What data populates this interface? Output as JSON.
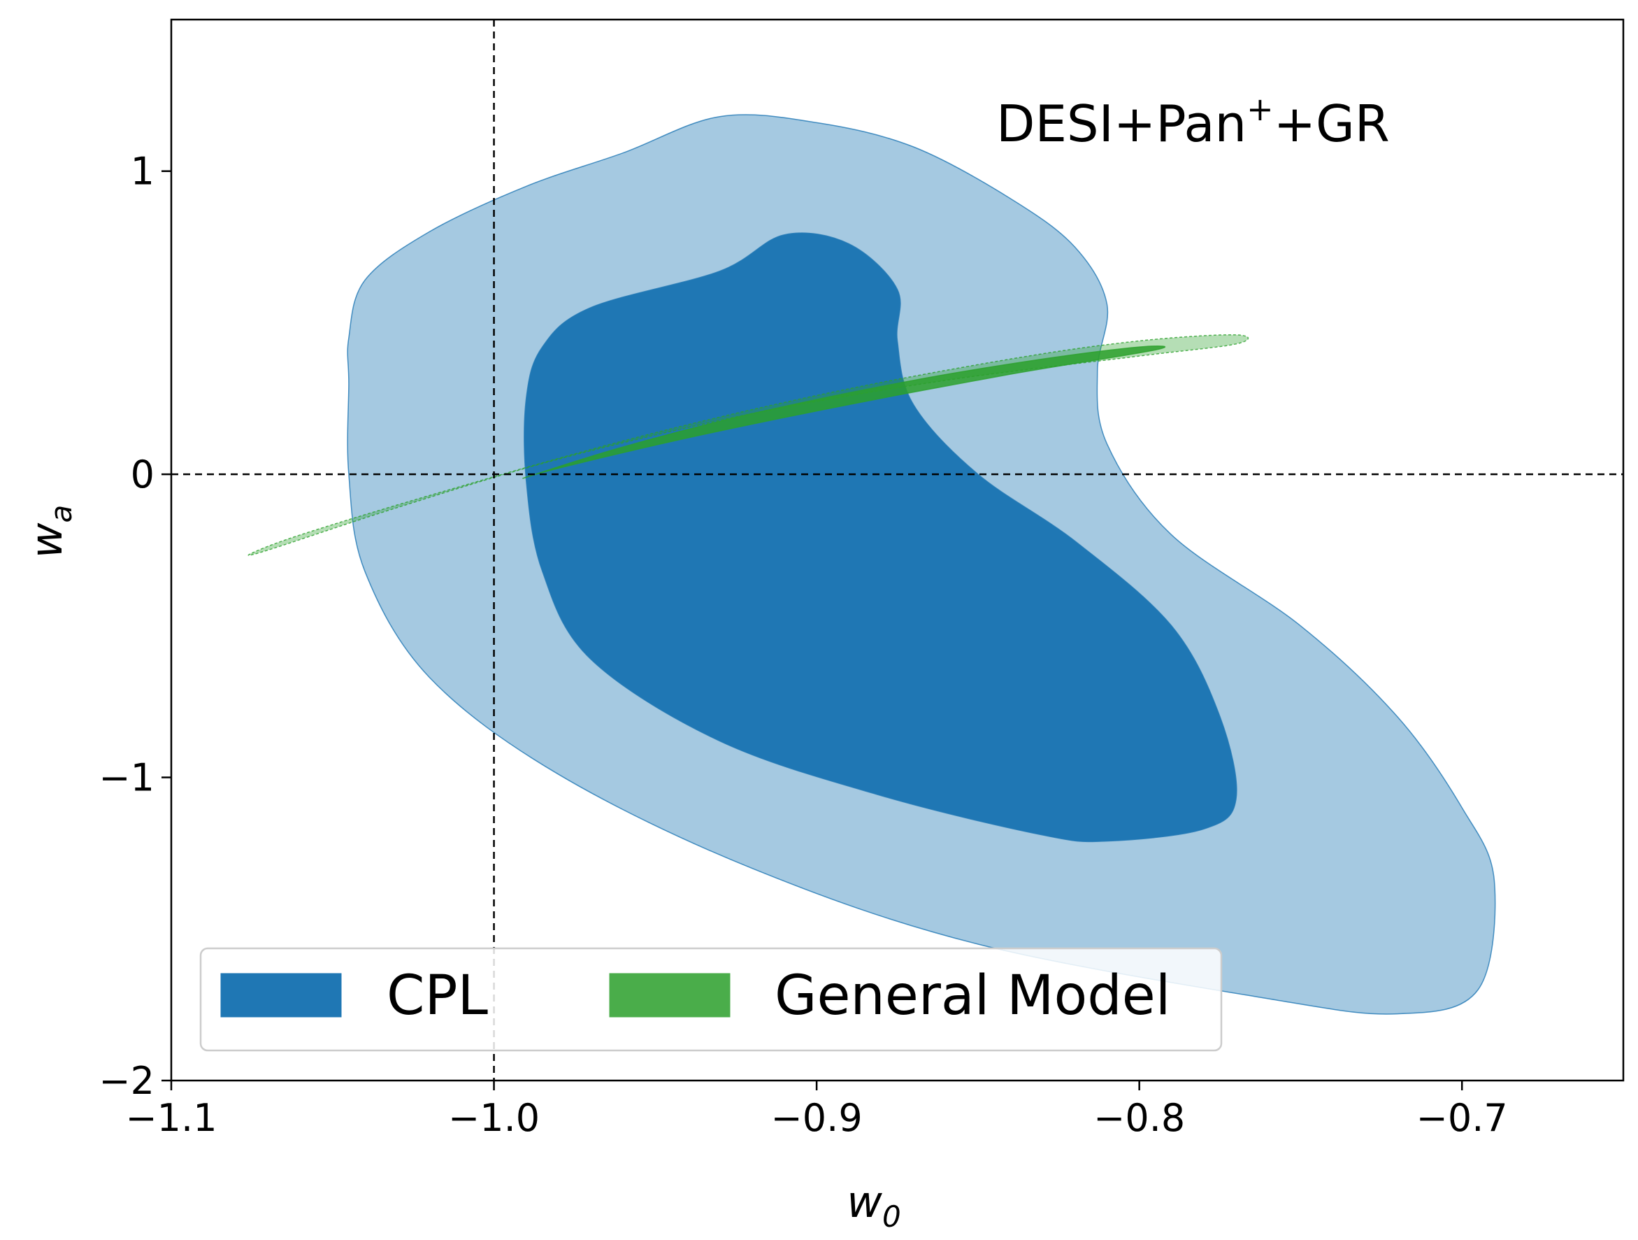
{
  "chart_data": {
    "type": "contour",
    "xlabel": "w",
    "xlabel_sub": "0",
    "ylabel": "w",
    "ylabel_sub": "a",
    "xlim": [
      -1.1,
      -0.65
    ],
    "ylim": [
      -2.0,
      1.5
    ],
    "xticks": [
      -1.1,
      -1.0,
      -0.9,
      -0.8,
      -0.7
    ],
    "xtick_labels": [
      "−1.1",
      "−1.0",
      "−0.9",
      "−0.8",
      "−0.7"
    ],
    "yticks": [
      -2,
      -1,
      0,
      1
    ],
    "ytick_labels": [
      "−2",
      "−1",
      "0",
      "1"
    ],
    "reference_lines": {
      "w0": -1.0,
      "wa": 0.0
    },
    "annotation": {
      "text": "DESI+Pan",
      "sup": "+",
      "after": "+GR"
    },
    "legend": {
      "location": "lower-left",
      "entries": [
        {
          "label": "CPL",
          "color": "#1f77b4"
        },
        {
          "label": "General Model",
          "color": "#4aad4a"
        }
      ]
    },
    "series": [
      {
        "name": "CPL",
        "color": "#1f77b4",
        "contours": [
          {
            "level": "95%",
            "opacity": 0.4,
            "points": [
              [
                -1.045,
                0.45
              ],
              [
                -1.04,
                0.64
              ],
              [
                -1.02,
                0.8
              ],
              [
                -0.99,
                0.95
              ],
              [
                -0.96,
                1.06
              ],
              [
                -0.93,
                1.18
              ],
              [
                -0.9,
                1.16
              ],
              [
                -0.87,
                1.08
              ],
              [
                -0.84,
                0.91
              ],
              [
                -0.82,
                0.75
              ],
              [
                -0.81,
                0.56
              ],
              [
                -0.813,
                0.34
              ],
              [
                -0.81,
                0.1
              ],
              [
                -0.79,
                -0.2
              ],
              [
                -0.75,
                -0.5
              ],
              [
                -0.72,
                -0.8
              ],
              [
                -0.7,
                -1.1
              ],
              [
                -0.69,
                -1.34
              ],
              [
                -0.695,
                -1.7
              ],
              [
                -0.72,
                -1.78
              ],
              [
                -0.76,
                -1.73
              ],
              [
                -0.85,
                -1.55
              ],
              [
                -0.92,
                -1.3
              ],
              [
                -0.98,
                -0.99
              ],
              [
                -1.02,
                -0.67
              ],
              [
                -1.04,
                -0.32
              ],
              [
                -1.045,
                0.0
              ],
              [
                -1.045,
                0.3
              ]
            ]
          },
          {
            "level": "68%",
            "opacity": 1.0,
            "points": [
              [
                -0.99,
                0.25
              ],
              [
                -0.985,
                0.42
              ],
              [
                -0.97,
                0.55
              ],
              [
                -0.93,
                0.67
              ],
              [
                -0.91,
                0.79
              ],
              [
                -0.89,
                0.76
              ],
              [
                -0.875,
                0.61
              ],
              [
                -0.875,
                0.44
              ],
              [
                -0.87,
                0.23
              ],
              [
                -0.85,
                0.0
              ],
              [
                -0.82,
                -0.22
              ],
              [
                -0.79,
                -0.5
              ],
              [
                -0.775,
                -0.8
              ],
              [
                -0.77,
                -1.07
              ],
              [
                -0.78,
                -1.17
              ],
              [
                -0.81,
                -1.21
              ],
              [
                -0.83,
                -1.19
              ],
              [
                -0.88,
                -1.06
              ],
              [
                -0.93,
                -0.88
              ],
              [
                -0.97,
                -0.61
              ],
              [
                -0.985,
                -0.32
              ],
              [
                -0.99,
                -0.02
              ]
            ]
          }
        ]
      },
      {
        "name": "General Model",
        "color": "#2ca02c",
        "contours": [
          {
            "level": "95%",
            "opacity": 0.35,
            "points": [
              [
                -1.075,
                -0.26
              ],
              [
                -1.06,
                -0.2
              ],
              [
                -1.02,
                -0.07
              ],
              [
                -0.96,
                0.11
              ],
              [
                -0.9,
                0.26
              ],
              [
                -0.84,
                0.38
              ],
              [
                -0.8,
                0.44
              ],
              [
                -0.77,
                0.46
              ],
              [
                -0.77,
                0.43
              ],
              [
                -0.8,
                0.39
              ],
              [
                -0.86,
                0.31
              ],
              [
                -0.92,
                0.2
              ],
              [
                -0.98,
                0.05
              ],
              [
                -1.03,
                -0.11
              ],
              [
                -1.07,
                -0.25
              ]
            ]
          },
          {
            "level": "68%",
            "opacity": 0.85,
            "points": [
              [
                -0.99,
                -0.01
              ],
              [
                -0.96,
                0.09
              ],
              [
                -0.92,
                0.2
              ],
              [
                -0.87,
                0.31
              ],
              [
                -0.83,
                0.38
              ],
              [
                -0.8,
                0.42
              ],
              [
                -0.795,
                0.41
              ],
              [
                -0.84,
                0.33
              ],
              [
                -0.89,
                0.23
              ],
              [
                -0.94,
                0.12
              ],
              [
                -0.98,
                0.02
              ]
            ]
          }
        ]
      }
    ]
  }
}
